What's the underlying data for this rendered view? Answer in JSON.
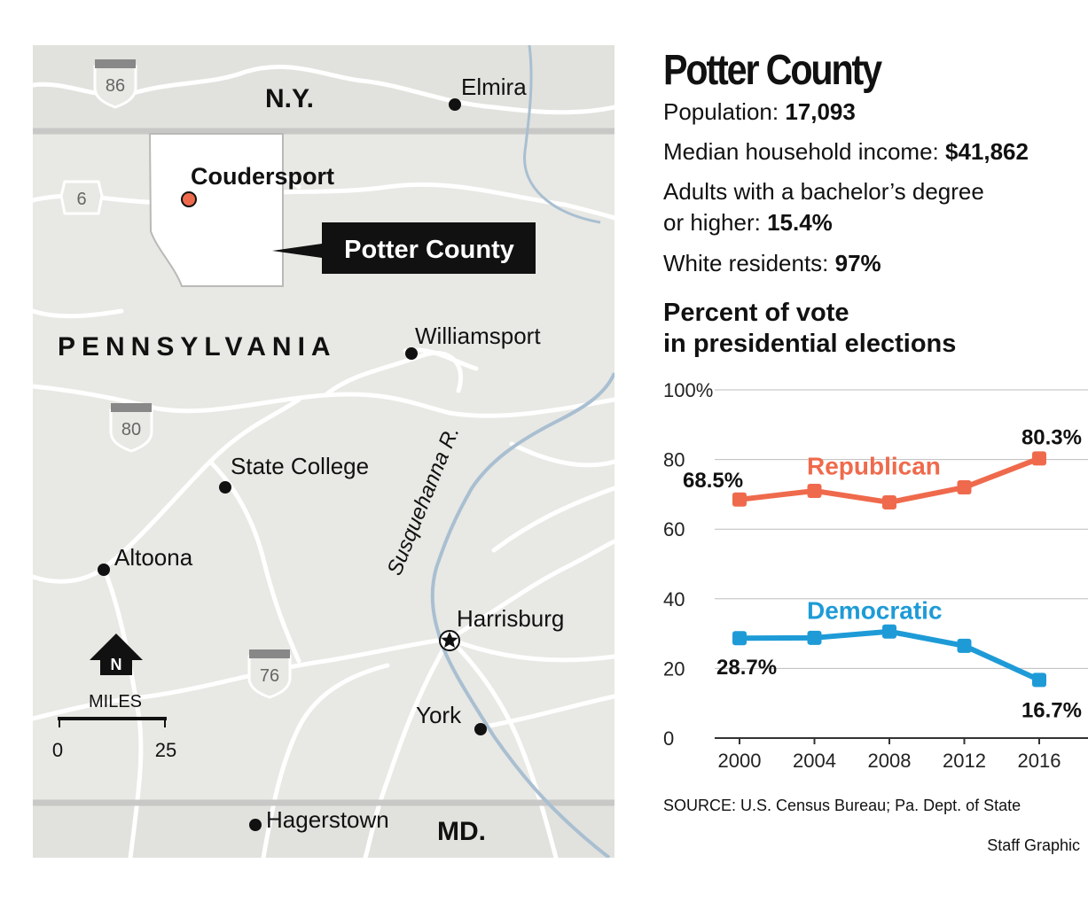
{
  "map": {
    "states": {
      "ny": "N.Y.",
      "pa": "PENNSYLVANIA",
      "md": "MD."
    },
    "county_label": "Potter County",
    "county_seat": "Coudersport",
    "cities": [
      "Elmira",
      "Williamsport",
      "State College",
      "Altoona",
      "Harrisburg",
      "York",
      "Hagerstown"
    ],
    "river": "Susquehanna R.",
    "highways": [
      "86",
      "6",
      "80",
      "76"
    ],
    "north_arrow": "N",
    "scale": {
      "unit": "MILES",
      "start": "0",
      "end": "25"
    },
    "colors": {
      "land": "#e8e8e4",
      "roads": "#ffffff",
      "county": "#ffffff",
      "river": "#a9bfd1",
      "county_seat_dot": "#ee6a4d"
    }
  },
  "panel": {
    "title": "Potter County",
    "population_label": "Population: ",
    "population_value": "17,093",
    "income_label": "Median household income: ",
    "income_value": "$41,862",
    "degree_label_line1": "Adults with a bachelor’s degree",
    "degree_label_line2": "or higher: ",
    "degree_value": "15.4%",
    "white_label": "White residents: ",
    "white_value": "97%",
    "chart_title_line1": "Percent of vote",
    "chart_title_line2": "in presidential elections",
    "source": "SOURCE: U.S. Census Bureau; Pa. Dept. of State",
    "credit": "Staff Graphic"
  },
  "chart_data": {
    "type": "line",
    "x": [
      2000,
      2004,
      2008,
      2012,
      2016
    ],
    "x_tick_labels": [
      "2000",
      "2004",
      "2008",
      "2012",
      "2016"
    ],
    "y_tick_labels": [
      "100%",
      "80",
      "60",
      "40",
      "20",
      "0"
    ],
    "ylim": [
      0,
      100
    ],
    "grid": true,
    "series": [
      {
        "name": "Republican",
        "color": "#ef6a4c",
        "values": [
          68.5,
          71,
          67.7,
          72,
          80.3
        ]
      },
      {
        "name": "Democratic",
        "color": "#1e9bd7",
        "values": [
          28.7,
          28.8,
          30.6,
          26.5,
          16.7
        ]
      }
    ],
    "annotations": [
      "68.5%",
      "80.3%",
      "28.7%",
      "16.7%"
    ]
  }
}
